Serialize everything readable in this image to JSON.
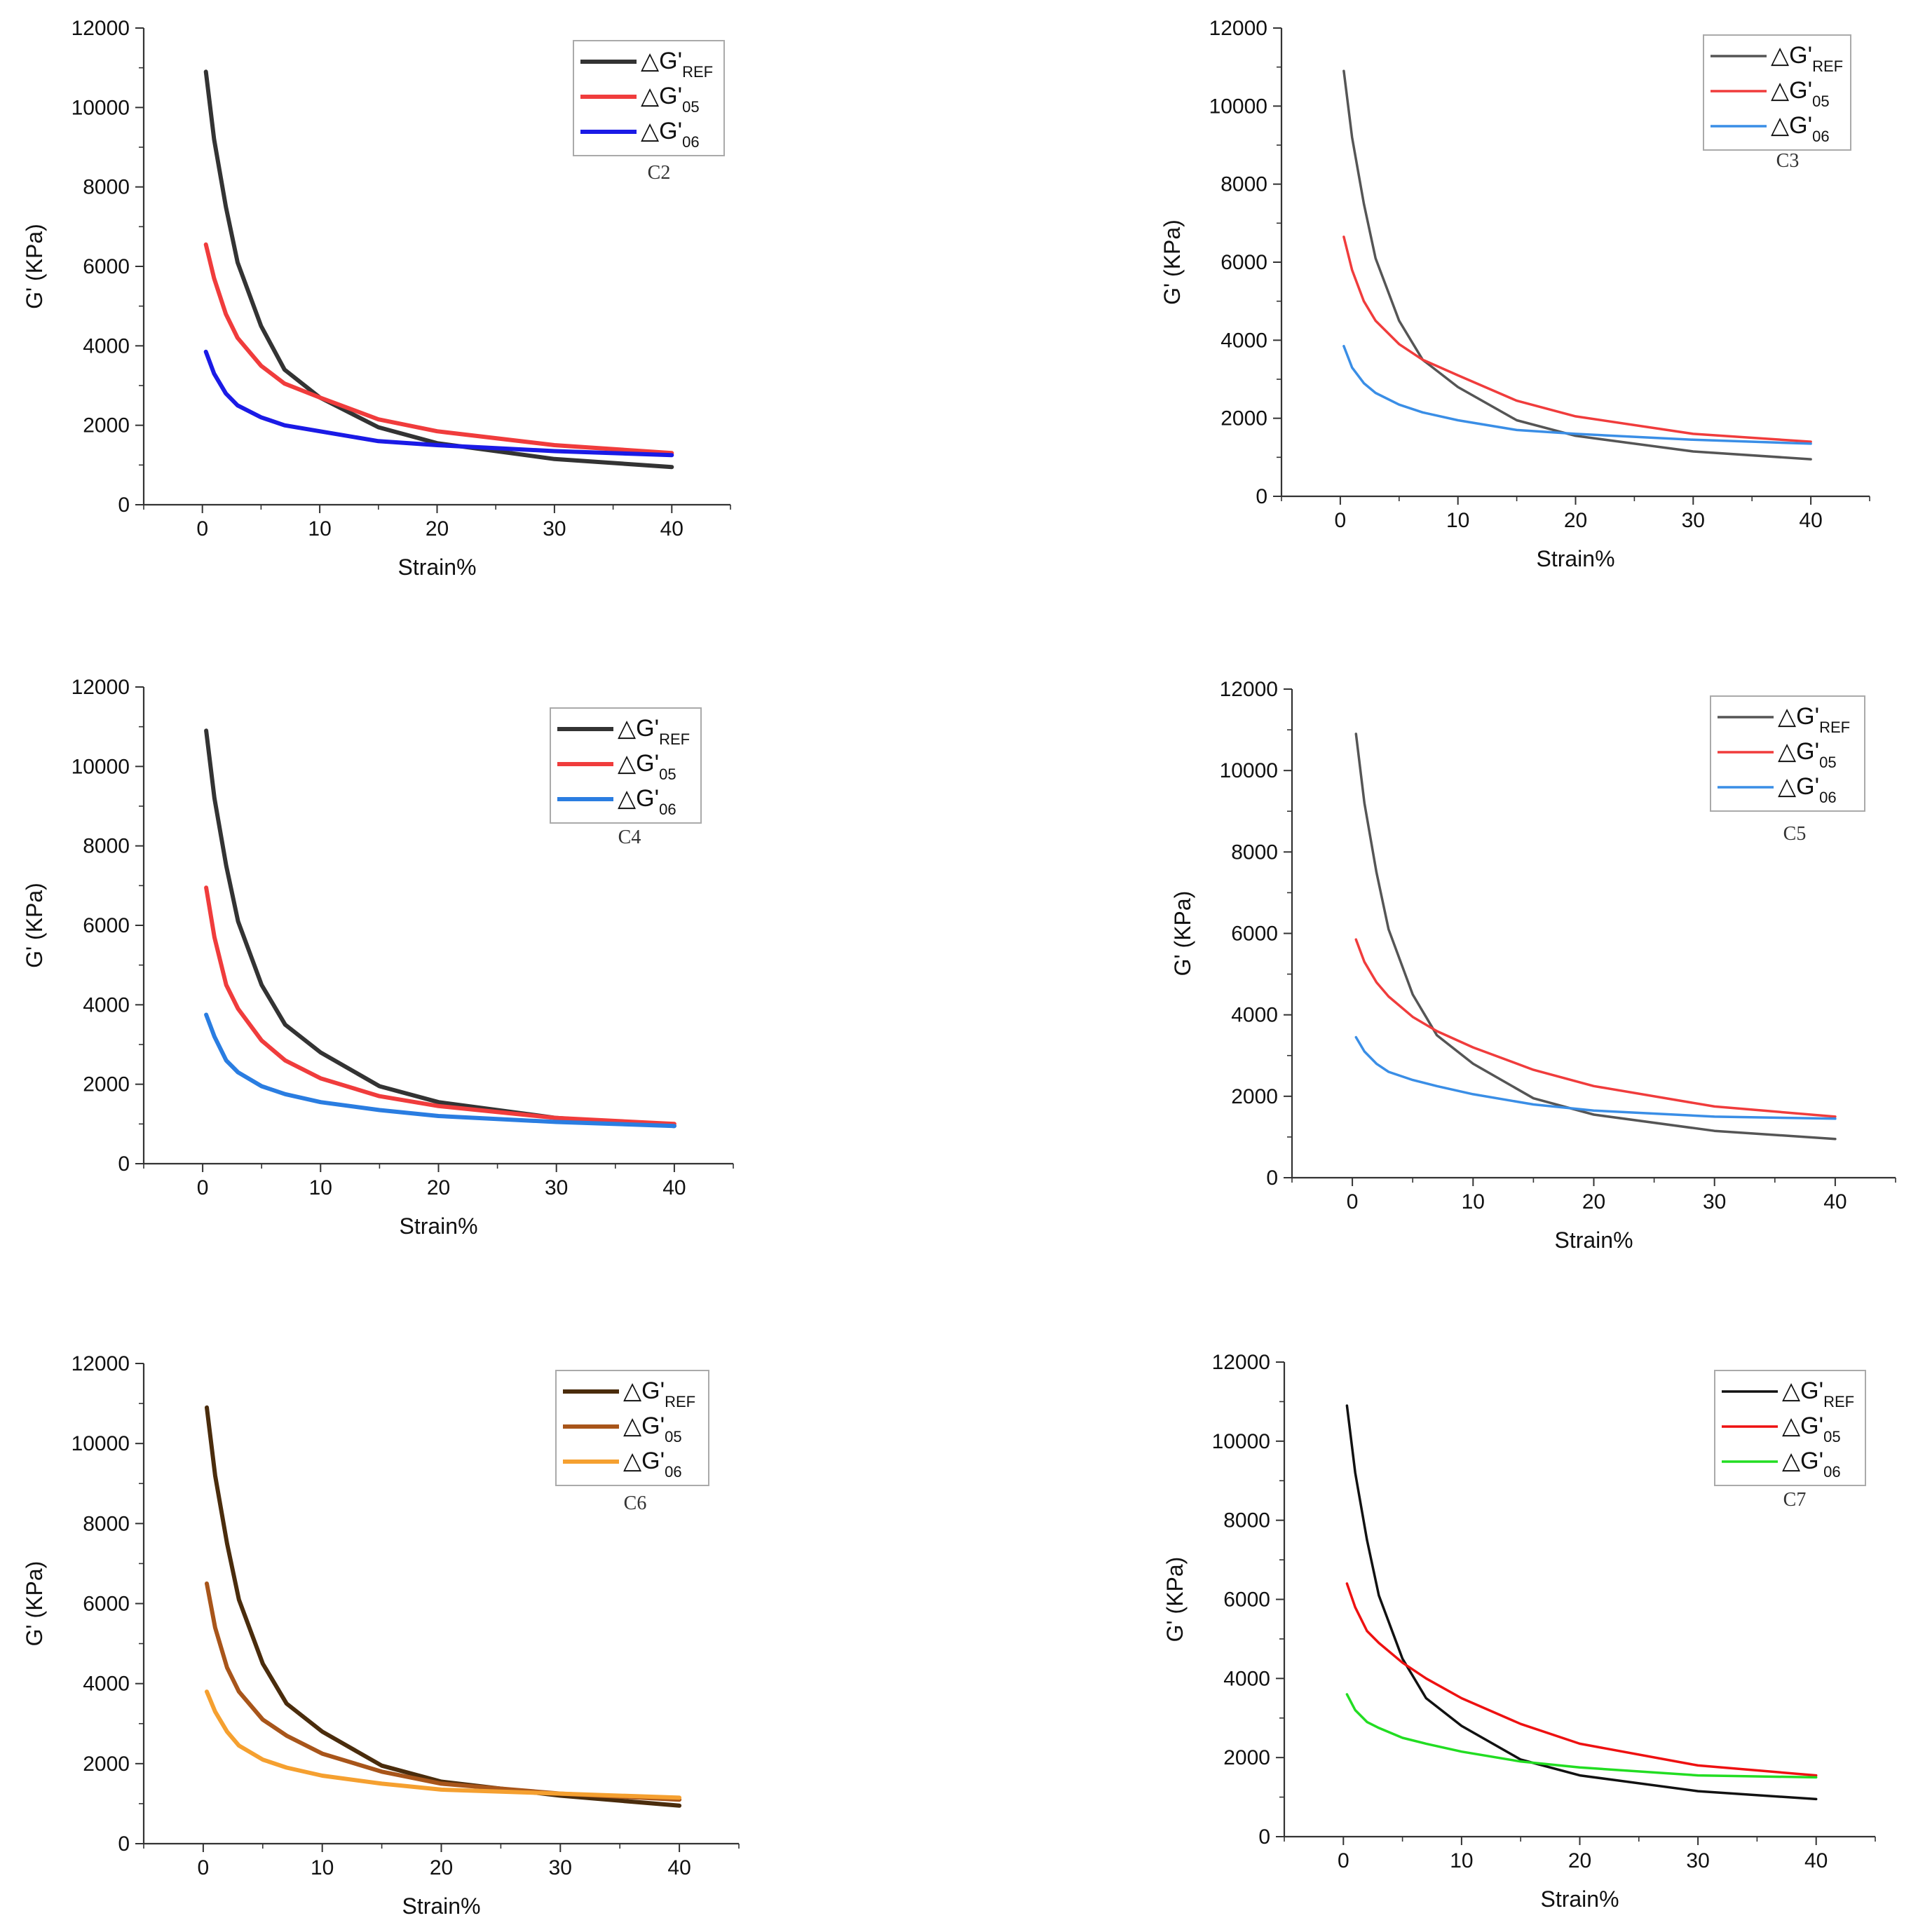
{
  "chart_data": [
    {
      "type": "line",
      "panel_label": "C2",
      "xlabel": "Strain%",
      "ylabel": "G' (KPa)",
      "xlim": [
        -5,
        45
      ],
      "ylim": [
        0,
        12000
      ],
      "x_ticks": [
        "0",
        "10",
        "20",
        "30",
        "40"
      ],
      "y_ticks": [
        "0",
        "2000",
        "4000",
        "6000",
        "8000",
        "10000",
        "12000"
      ],
      "legend_position": "top-right",
      "line_width": "thick",
      "x": [
        0.3,
        1,
        2,
        3,
        5,
        7,
        10,
        15,
        20,
        30,
        40
      ],
      "series": [
        {
          "name": "△G'",
          "subscript": "REF",
          "color": "#333333",
          "values": [
            10900,
            9200,
            7500,
            6100,
            4500,
            3400,
            2700,
            1950,
            1550,
            1150,
            950
          ]
        },
        {
          "name": "△G'",
          "subscript": "05",
          "color": "#f03c3c",
          "values": [
            6550,
            5700,
            4800,
            4200,
            3500,
            3050,
            2700,
            2150,
            1850,
            1500,
            1300
          ]
        },
        {
          "name": "△G'",
          "subscript": "06",
          "color": "#1a1ae6",
          "values": [
            3850,
            3300,
            2800,
            2500,
            2200,
            2000,
            1850,
            1600,
            1500,
            1350,
            1250
          ]
        }
      ]
    },
    {
      "type": "line",
      "panel_label": "C3",
      "xlabel": "Strain%",
      "ylabel": "G' (KPa)",
      "xlim": [
        -5,
        45
      ],
      "ylim": [
        0,
        12000
      ],
      "x_ticks": [
        "0",
        "10",
        "20",
        "30",
        "40"
      ],
      "y_ticks": [
        "0",
        "2000",
        "4000",
        "6000",
        "8000",
        "10000",
        "12000"
      ],
      "legend_position": "top-right",
      "line_width": "thin",
      "x": [
        0.3,
        1,
        2,
        3,
        5,
        7,
        10,
        15,
        20,
        30,
        40
      ],
      "series": [
        {
          "name": "△G'",
          "subscript": "REF",
          "color": "#555555",
          "values": [
            10900,
            9200,
            7500,
            6100,
            4500,
            3500,
            2800,
            1950,
            1550,
            1150,
            950
          ]
        },
        {
          "name": "△G'",
          "subscript": "05",
          "color": "#f03c3c",
          "values": [
            6650,
            5800,
            5000,
            4500,
            3900,
            3500,
            3100,
            2450,
            2050,
            1600,
            1400
          ]
        },
        {
          "name": "△G'",
          "subscript": "06",
          "color": "#3a8ee6",
          "values": [
            3850,
            3300,
            2900,
            2650,
            2350,
            2150,
            1950,
            1700,
            1600,
            1450,
            1350
          ]
        }
      ]
    },
    {
      "type": "line",
      "panel_label": "C4",
      "xlabel": "Strain%",
      "ylabel": "G' (KPa)",
      "xlim": [
        -5,
        45
      ],
      "ylim": [
        0,
        12000
      ],
      "x_ticks": [
        "0",
        "10",
        "20",
        "30",
        "40"
      ],
      "y_ticks": [
        "0",
        "2000",
        "4000",
        "6000",
        "8000",
        "10000",
        "12000"
      ],
      "legend_position": "top-right",
      "line_width": "thick",
      "x": [
        0.3,
        1,
        2,
        3,
        5,
        7,
        10,
        15,
        20,
        30,
        40
      ],
      "series": [
        {
          "name": "△G'",
          "subscript": "REF",
          "color": "#333333",
          "values": [
            10900,
            9200,
            7500,
            6100,
            4500,
            3500,
            2800,
            1950,
            1550,
            1150,
            950
          ]
        },
        {
          "name": "△G'",
          "subscript": "05",
          "color": "#f03c3c",
          "values": [
            6950,
            5700,
            4500,
            3900,
            3100,
            2600,
            2150,
            1700,
            1450,
            1150,
            1000
          ]
        },
        {
          "name": "△G'",
          "subscript": "06",
          "color": "#2a7de1",
          "values": [
            3750,
            3200,
            2600,
            2300,
            1950,
            1750,
            1550,
            1350,
            1200,
            1050,
            950
          ]
        }
      ]
    },
    {
      "type": "line",
      "panel_label": "C5",
      "xlabel": "Strain%",
      "ylabel": "G' (KPa)",
      "xlim": [
        -5,
        45
      ],
      "ylim": [
        0,
        12000
      ],
      "x_ticks": [
        "0",
        "10",
        "20",
        "30",
        "40"
      ],
      "y_ticks": [
        "0",
        "2000",
        "4000",
        "6000",
        "8000",
        "10000",
        "12000"
      ],
      "legend_position": "top-right",
      "line_width": "thin",
      "x": [
        0.3,
        1,
        2,
        3,
        5,
        7,
        10,
        15,
        20,
        30,
        40
      ],
      "series": [
        {
          "name": "△G'",
          "subscript": "REF",
          "color": "#555555",
          "values": [
            10900,
            9200,
            7500,
            6100,
            4500,
            3500,
            2800,
            1950,
            1550,
            1150,
            950
          ]
        },
        {
          "name": "△G'",
          "subscript": "05",
          "color": "#f03c3c",
          "values": [
            5850,
            5300,
            4800,
            4450,
            3950,
            3600,
            3200,
            2650,
            2250,
            1750,
            1500
          ]
        },
        {
          "name": "△G'",
          "subscript": "06",
          "color": "#3a8ee6",
          "values": [
            3450,
            3100,
            2800,
            2600,
            2400,
            2250,
            2050,
            1800,
            1650,
            1500,
            1450
          ]
        }
      ]
    },
    {
      "type": "line",
      "panel_label": "C6",
      "xlabel": "Strain%",
      "ylabel": "G' (KPa)",
      "xlim": [
        -5,
        45
      ],
      "ylim": [
        0,
        12000
      ],
      "x_ticks": [
        "0",
        "10",
        "20",
        "30",
        "40"
      ],
      "y_ticks": [
        "0",
        "2000",
        "4000",
        "6000",
        "8000",
        "10000",
        "12000"
      ],
      "legend_position": "top-right",
      "line_width": "thick",
      "x": [
        0.3,
        1,
        2,
        3,
        5,
        7,
        10,
        15,
        20,
        30,
        40
      ],
      "series": [
        {
          "name": "△G'",
          "subscript": "REF",
          "color": "#4a2c0c",
          "values": [
            10900,
            9200,
            7500,
            6100,
            4500,
            3500,
            2800,
            1950,
            1550,
            1200,
            950
          ]
        },
        {
          "name": "△G'",
          "subscript": "05",
          "color": "#a8551a",
          "values": [
            6500,
            5400,
            4400,
            3800,
            3100,
            2700,
            2250,
            1800,
            1500,
            1250,
            1100
          ]
        },
        {
          "name": "△G'",
          "subscript": "06",
          "color": "#f5a030",
          "values": [
            3800,
            3300,
            2800,
            2450,
            2100,
            1900,
            1700,
            1500,
            1350,
            1250,
            1150
          ]
        }
      ]
    },
    {
      "type": "line",
      "panel_label": "C7",
      "xlabel": "Strain%",
      "ylabel": "G' (KPa)",
      "xlim": [
        -5,
        45
      ],
      "ylim": [
        0,
        12000
      ],
      "x_ticks": [
        "0",
        "10",
        "20",
        "30",
        "40"
      ],
      "y_ticks": [
        "0",
        "2000",
        "4000",
        "6000",
        "8000",
        "10000",
        "12000"
      ],
      "legend_position": "top-right",
      "line_width": "thin",
      "x": [
        0.3,
        1,
        2,
        3,
        5,
        7,
        10,
        15,
        20,
        30,
        40
      ],
      "series": [
        {
          "name": "△G'",
          "subscript": "REF",
          "color": "#111111",
          "values": [
            10900,
            9200,
            7500,
            6100,
            4500,
            3500,
            2800,
            1950,
            1550,
            1150,
            950
          ]
        },
        {
          "name": "△G'",
          "subscript": "05",
          "color": "#ee1111",
          "values": [
            6400,
            5800,
            5200,
            4900,
            4400,
            4000,
            3500,
            2850,
            2350,
            1800,
            1550
          ]
        },
        {
          "name": "△G'",
          "subscript": "06",
          "color": "#22dd22",
          "values": [
            3600,
            3200,
            2900,
            2750,
            2500,
            2350,
            2150,
            1900,
            1750,
            1550,
            1500
          ]
        }
      ]
    }
  ]
}
